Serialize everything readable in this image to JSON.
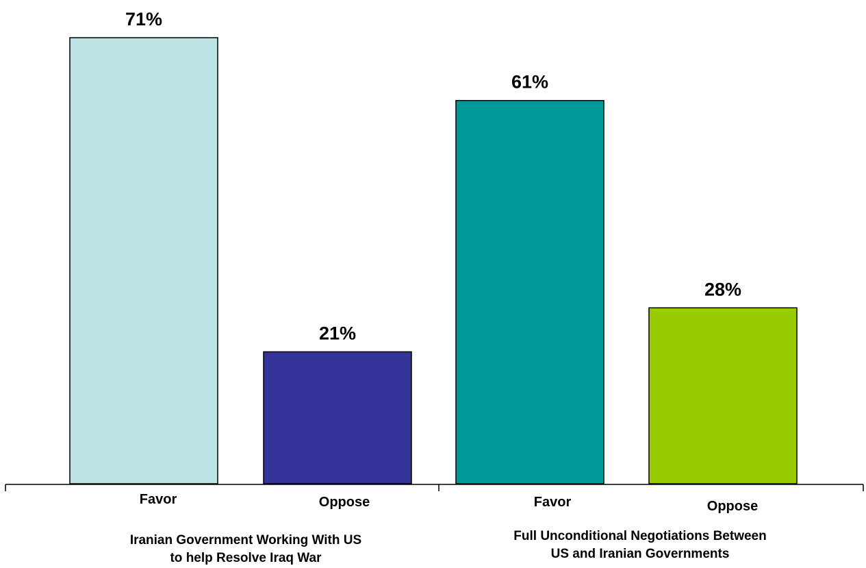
{
  "chart_data": {
    "type": "bar",
    "ylim": [
      0,
      75
    ],
    "grid": false,
    "bars": [
      {
        "group": 0,
        "category": "Favor",
        "value": 71,
        "label": "71%",
        "color": "#bce2e3"
      },
      {
        "group": 0,
        "category": "Oppose",
        "value": 21,
        "label": "21%",
        "color": "#35349a"
      },
      {
        "group": 1,
        "category": "Favor",
        "value": 61,
        "label": "61%",
        "color": "#009999"
      },
      {
        "group": 1,
        "category": "Oppose",
        "value": 28,
        "label": "28%",
        "color": "#99cc00"
      }
    ],
    "groups": [
      {
        "line1": "Iranian Government Working With US",
        "line2": "to help Resolve Iraq War"
      },
      {
        "line1": "Full Unconditional Negotiations Between",
        "line2": "US and Iranian Governments"
      }
    ]
  }
}
